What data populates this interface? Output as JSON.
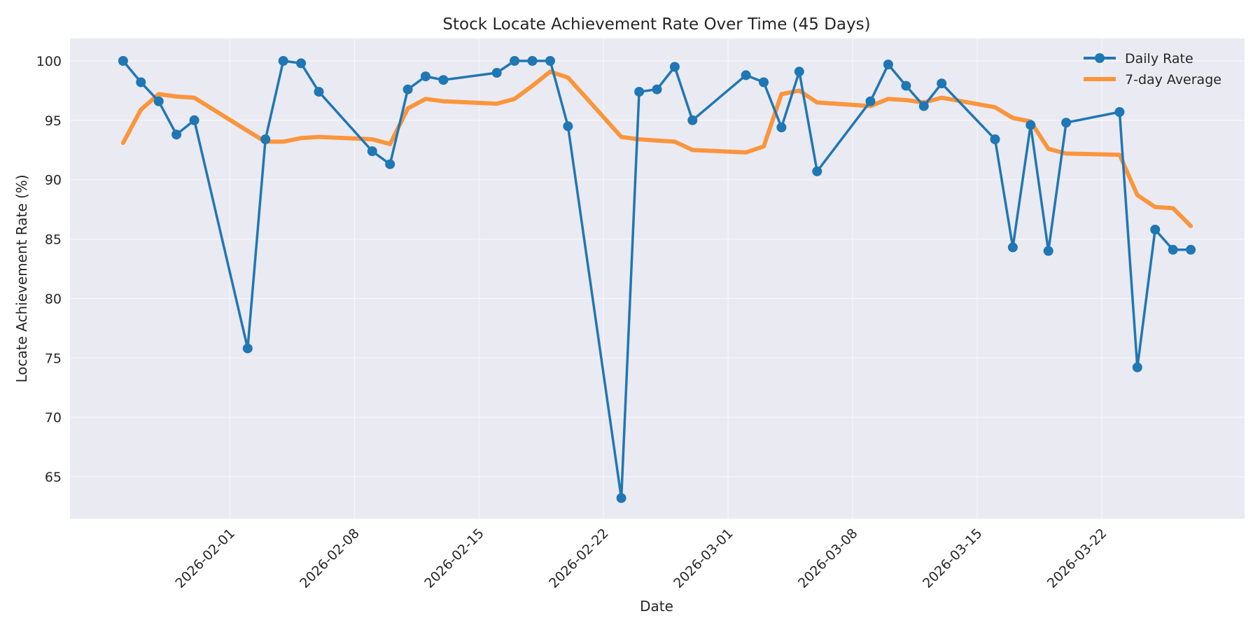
{
  "chart_data": {
    "type": "line",
    "title": "Stock Locate Achievement Rate Over Time (45 Days)",
    "xlabel": "Date",
    "ylabel": "Locate Achievement Rate (%)",
    "ylim": [
      61.5,
      101.9
    ],
    "yticks": [
      65,
      70,
      75,
      80,
      85,
      90,
      95,
      100
    ],
    "xticks": [
      "2026-02-01",
      "2026-02-08",
      "2026-02-15",
      "2026-02-22",
      "2026-03-01",
      "2026-03-08",
      "2026-03-15",
      "2026-03-22"
    ],
    "grid": true,
    "legend_position": "upper right",
    "x": [
      "2026-01-26",
      "2026-01-27",
      "2026-01-28",
      "2026-01-29",
      "2026-01-30",
      "2026-02-02",
      "2026-02-03",
      "2026-02-04",
      "2026-02-05",
      "2026-02-06",
      "2026-02-09",
      "2026-02-10",
      "2026-02-11",
      "2026-02-12",
      "2026-02-13",
      "2026-02-16",
      "2026-02-17",
      "2026-02-18",
      "2026-02-19",
      "2026-02-20",
      "2026-02-23",
      "2026-02-24",
      "2026-02-25",
      "2026-02-26",
      "2026-02-27",
      "2026-03-02",
      "2026-03-03",
      "2026-03-04",
      "2026-03-05",
      "2026-03-06",
      "2026-03-09",
      "2026-03-10",
      "2026-03-11",
      "2026-03-12",
      "2026-03-13",
      "2026-03-16",
      "2026-03-17",
      "2026-03-18",
      "2026-03-19",
      "2026-03-20",
      "2026-03-23",
      "2026-03-24",
      "2026-03-25",
      "2026-03-26",
      "2026-03-27"
    ],
    "series": [
      {
        "name": "Daily Rate",
        "color": "#1f77b4",
        "marker": "circle",
        "values": [
          100.0,
          98.2,
          96.6,
          93.8,
          95.0,
          75.8,
          93.4,
          100.0,
          99.8,
          97.4,
          92.4,
          91.3,
          97.6,
          98.7,
          98.4,
          99.0,
          100.0,
          100.0,
          100.0,
          94.5,
          63.2,
          97.4,
          97.6,
          99.5,
          95.0,
          98.8,
          98.2,
          94.4,
          99.1,
          90.7,
          96.6,
          99.7,
          97.9,
          96.2,
          98.1,
          93.4,
          84.3,
          94.6,
          84.0,
          94.8,
          95.7,
          74.2,
          85.8,
          84.1,
          84.1
        ]
      },
      {
        "name": "7-day Average",
        "color": "#ff7f0e",
        "marker": "none",
        "values": [
          93.1,
          95.9,
          97.2,
          97.0,
          96.9,
          94.1,
          93.2,
          93.2,
          93.5,
          93.6,
          93.4,
          93.0,
          96.0,
          96.8,
          96.6,
          96.4,
          96.8,
          97.9,
          99.1,
          98.6,
          93.6,
          93.4,
          93.3,
          93.2,
          92.5,
          92.3,
          92.8,
          97.2,
          97.5,
          96.5,
          96.2,
          96.8,
          96.7,
          96.5,
          96.9,
          96.1,
          95.2,
          94.9,
          92.6,
          92.2,
          92.1,
          88.7,
          87.7,
          87.6,
          86.1
        ]
      }
    ]
  },
  "colors": {
    "background": "#ffffff",
    "plot_background": "#eaeaf2",
    "grid": "#f4f4f8",
    "text": "#262626"
  }
}
